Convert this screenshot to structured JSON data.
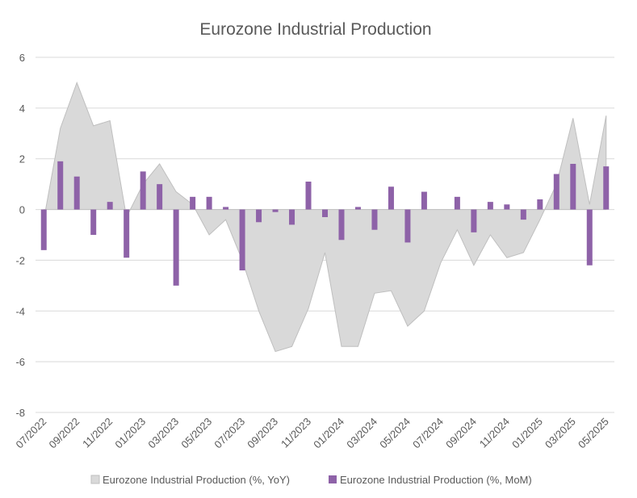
{
  "chart_data": {
    "type": "bar",
    "title": "Eurozone Industrial Production",
    "xlabel": "",
    "ylabel": "",
    "ylim": [
      -8,
      6
    ],
    "yticks": [
      6,
      4,
      2,
      0,
      -2,
      -4,
      -6,
      -8
    ],
    "grid": true,
    "legend_position": "bottom",
    "x": [
      "07/2022",
      "08/2022",
      "09/2022",
      "10/2022",
      "11/2022",
      "12/2022",
      "01/2023",
      "02/2023",
      "03/2023",
      "04/2023",
      "05/2023",
      "06/2023",
      "07/2023",
      "08/2023",
      "09/2023",
      "10/2023",
      "11/2023",
      "12/2023",
      "01/2024",
      "02/2024",
      "03/2024",
      "04/2024",
      "05/2024",
      "06/2024",
      "07/2024",
      "08/2024",
      "09/2024",
      "10/2024",
      "11/2024",
      "12/2024",
      "01/2025",
      "02/2025",
      "03/2025",
      "04/2025",
      "05/2025"
    ],
    "x_tick_labels": [
      "07/2022",
      "09/2022",
      "11/2022",
      "01/2023",
      "03/2023",
      "05/2023",
      "07/2023",
      "09/2023",
      "11/2023",
      "01/2024",
      "03/2024",
      "05/2024",
      "07/2024",
      "09/2024",
      "11/2024",
      "01/2025",
      "03/2025",
      "05/2025"
    ],
    "series": [
      {
        "name": "Eurozone Industrial Production (%, YoY)",
        "type": "area",
        "color": "#d9d9d9",
        "stroke": "#bfbfbf",
        "values": [
          -0.4,
          3.2,
          5.0,
          3.3,
          3.5,
          -0.3,
          1.0,
          1.8,
          0.7,
          0.2,
          -1.0,
          -0.4,
          -2.0,
          -4.0,
          -5.6,
          -5.4,
          -3.9,
          -1.7,
          -5.4,
          -5.4,
          -3.3,
          -3.2,
          -4.6,
          -4.0,
          -2.1,
          -0.8,
          -2.2,
          -1.0,
          -1.9,
          -1.7,
          -0.4,
          1.0,
          3.6,
          0.2,
          3.7
        ]
      },
      {
        "name": "Eurozone Industrial Production (%, MoM)",
        "type": "bar",
        "color": "#8e62a8",
        "values": [
          -1.6,
          1.9,
          1.3,
          -1.0,
          0.3,
          -1.9,
          1.5,
          1.0,
          -3.0,
          0.5,
          0.5,
          0.1,
          -2.4,
          -0.5,
          -0.1,
          -0.6,
          1.1,
          -0.3,
          -1.2,
          0.1,
          -0.8,
          0.9,
          -1.3,
          0.7,
          0.0,
          0.5,
          -0.9,
          0.3,
          0.2,
          -0.4,
          0.4,
          1.4,
          1.8,
          -2.2,
          1.7
        ]
      }
    ]
  }
}
